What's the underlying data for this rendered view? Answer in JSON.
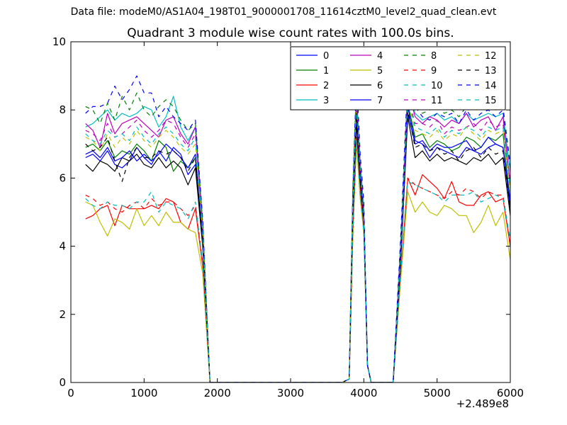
{
  "figure": {
    "supertitle": "Data file: modeM0/AS1A04_198T01_9000001708_11614cztM0_level2_quad_clean.evt"
  },
  "chart_data": {
    "type": "line",
    "title": "Quadrant 3 module wise count rates with 100.0s bins.",
    "xlabel": "",
    "ylabel": "",
    "x_offset_label": "+2.489e8",
    "xlim": [
      0,
      6000
    ],
    "ylim": [
      0,
      10
    ],
    "x_ticks": [
      0,
      1000,
      2000,
      3000,
      4000,
      5000,
      6000
    ],
    "y_ticks": [
      0,
      2,
      4,
      6,
      8,
      10
    ],
    "x_tick_labels": [
      "0",
      "1000",
      "2000",
      "3000",
      "4000",
      "5000",
      "6000"
    ],
    "y_tick_labels": [
      "0",
      "2",
      "4",
      "6",
      "8",
      "10"
    ],
    "grid": false,
    "legend_position": "top-right",
    "legend_columns": 4,
    "x": [
      200,
      300,
      400,
      500,
      600,
      700,
      800,
      900,
      1000,
      1100,
      1200,
      1300,
      1400,
      1500,
      1600,
      1700,
      1800,
      1900,
      2000,
      2100,
      2200,
      2300,
      2400,
      2500,
      2600,
      2700,
      2800,
      2900,
      3000,
      3100,
      3200,
      3300,
      3400,
      3500,
      3600,
      3700,
      3800,
      3850,
      3900,
      3950,
      4000,
      4050,
      4100,
      4200,
      4300,
      4400,
      4500,
      4600,
      4700,
      4800,
      4900,
      5000,
      5100,
      5200,
      5300,
      5400,
      5500,
      5600,
      5700,
      5800,
      5900,
      6000
    ],
    "series": [
      {
        "name": "0",
        "color": "#0000ff",
        "dash": "solid",
        "values": [
          6.6,
          6.7,
          6.5,
          6.8,
          6.4,
          6.3,
          6.5,
          6.9,
          6.6,
          6.4,
          6.8,
          6.5,
          6.9,
          6.7,
          6.1,
          6.4,
          4.1,
          0,
          0,
          0,
          0,
          0,
          0,
          0,
          0,
          0,
          0,
          0,
          0,
          0,
          0,
          0,
          0,
          0,
          0,
          0,
          0.1,
          5.0,
          7.7,
          6.0,
          4.8,
          0.5,
          0,
          0,
          0,
          0,
          3.5,
          8.1,
          7.1,
          7.0,
          6.6,
          6.9,
          6.8,
          6.7,
          6.6,
          6.9,
          6.8,
          6.7,
          6.9,
          7.0,
          6.9,
          5.1
        ]
      },
      {
        "name": "1",
        "color": "#008000",
        "dash": "solid",
        "values": [
          6.9,
          7.0,
          6.8,
          7.1,
          6.6,
          6.8,
          6.7,
          7.0,
          6.8,
          6.5,
          7.1,
          6.9,
          6.2,
          6.5,
          6.3,
          6.6,
          4.2,
          0,
          0,
          0,
          0,
          0,
          0,
          0,
          0,
          0,
          0,
          0,
          0,
          0,
          0,
          0,
          0,
          0,
          0,
          0,
          0.1,
          5.1,
          8.0,
          6.1,
          4.9,
          0.5,
          0,
          0,
          0,
          0,
          3.7,
          8.2,
          7.2,
          7.3,
          6.9,
          7.1,
          7.0,
          6.8,
          6.9,
          7.2,
          7.1,
          6.9,
          7.2,
          7.1,
          7.3,
          5.3
        ]
      },
      {
        "name": "2",
        "color": "#ff0000",
        "dash": "solid",
        "values": [
          4.8,
          4.9,
          5.1,
          5.2,
          4.6,
          5.2,
          5.1,
          5.1,
          5.1,
          5.2,
          5.1,
          5.4,
          5.3,
          4.7,
          4.5,
          5.1,
          3.4,
          0,
          0,
          0,
          0,
          0,
          0,
          0,
          0,
          0,
          0,
          0,
          0,
          0,
          0,
          0,
          0,
          0,
          0,
          0,
          0.1,
          4.3,
          7.2,
          5.6,
          4.5,
          0.5,
          0,
          0,
          0,
          0,
          3.0,
          6.0,
          5.5,
          6.1,
          5.9,
          5.7,
          5.4,
          5.9,
          5.3,
          5.2,
          5.2,
          5.5,
          5.6,
          5.3,
          5.4,
          4.0
        ]
      },
      {
        "name": "3",
        "color": "#00bfbf",
        "dash": "solid",
        "values": [
          7.5,
          7.6,
          7.8,
          8.0,
          7.7,
          7.9,
          7.8,
          7.9,
          8.1,
          8.0,
          7.5,
          7.8,
          8.4,
          7.5,
          7.1,
          7.5,
          4.5,
          0,
          0,
          0,
          0,
          0,
          0,
          0,
          0,
          0,
          0,
          0,
          0,
          0,
          0,
          0,
          0,
          0,
          0,
          0,
          0.1,
          5.6,
          8.5,
          6.5,
          5.1,
          0.5,
          0,
          0,
          0,
          0,
          4.0,
          8.7,
          7.9,
          7.7,
          7.8,
          7.9,
          7.7,
          7.8,
          7.6,
          7.9,
          7.7,
          7.8,
          7.9,
          7.8,
          7.9,
          6.2
        ]
      },
      {
        "name": "4",
        "color": "#bf00bf",
        "dash": "solid",
        "values": [
          7.6,
          7.4,
          6.9,
          7.9,
          7.3,
          7.6,
          7.7,
          7.8,
          7.6,
          7.4,
          7.2,
          7.7,
          7.8,
          7.3,
          7.0,
          7.5,
          4.6,
          0,
          0,
          0,
          0,
          0,
          0,
          0,
          0,
          0,
          0,
          0,
          0,
          0,
          0,
          0,
          0,
          0,
          0,
          0,
          0.1,
          5.5,
          8.3,
          6.4,
          5.0,
          0.5,
          0,
          0,
          0,
          0,
          3.9,
          8.6,
          7.8,
          7.6,
          7.8,
          7.7,
          7.5,
          7.7,
          7.6,
          7.9,
          7.5,
          7.7,
          7.8,
          7.4,
          7.8,
          5.8
        ]
      },
      {
        "name": "5",
        "color": "#bfbf00",
        "dash": "solid",
        "values": [
          5.3,
          5.2,
          4.7,
          4.3,
          4.8,
          4.7,
          4.5,
          5.1,
          4.6,
          4.9,
          4.6,
          5.0,
          4.7,
          4.7,
          4.5,
          4.4,
          3.2,
          0,
          0,
          0,
          0,
          0,
          0,
          0,
          0,
          0,
          0,
          0,
          0,
          0,
          0,
          0,
          0,
          0,
          0,
          0,
          0.1,
          4.2,
          7.0,
          5.4,
          4.4,
          0.5,
          0,
          0,
          0,
          0,
          2.9,
          5.6,
          5.0,
          5.3,
          5.0,
          4.9,
          5.2,
          5.1,
          4.9,
          4.9,
          4.4,
          4.7,
          5.2,
          4.6,
          5.0,
          3.6
        ]
      },
      {
        "name": "6",
        "color": "#000000",
        "dash": "solid",
        "values": [
          6.4,
          6.2,
          6.5,
          6.4,
          6.2,
          6.6,
          6.5,
          6.7,
          6.4,
          6.3,
          6.6,
          6.3,
          6.5,
          6.3,
          5.8,
          6.3,
          4.0,
          0,
          0,
          0,
          0,
          0,
          0,
          0,
          0,
          0,
          0,
          0,
          0,
          0,
          0,
          0,
          0,
          0,
          0,
          0,
          0.1,
          4.9,
          7.6,
          5.9,
          4.7,
          0.5,
          0,
          0,
          0,
          0,
          3.4,
          7.8,
          6.6,
          6.8,
          6.5,
          6.7,
          6.5,
          6.6,
          6.5,
          6.4,
          6.6,
          6.5,
          6.7,
          6.4,
          6.6,
          4.9
        ]
      },
      {
        "name": "7",
        "color": "#0000ff",
        "dash": "solid",
        "values": [
          6.7,
          6.8,
          6.6,
          6.9,
          6.5,
          6.6,
          6.8,
          6.5,
          6.7,
          6.5,
          6.7,
          7.0,
          6.8,
          6.6,
          6.3,
          6.7,
          4.2,
          0,
          0,
          0,
          0,
          0,
          0,
          0,
          0,
          0,
          0,
          0,
          0,
          0,
          0,
          0,
          0,
          0,
          0,
          0,
          0.1,
          5.1,
          8.0,
          6.1,
          4.8,
          0.5,
          0,
          0,
          0,
          0,
          3.6,
          7.9,
          7.0,
          7.1,
          6.8,
          7.0,
          6.9,
          6.9,
          7.0,
          7.1,
          6.8,
          6.9,
          7.2,
          7.0,
          6.9,
          5.3
        ]
      },
      {
        "name": "8",
        "color": "#008000",
        "dash": "dashed",
        "values": [
          8.1,
          8.0,
          7.6,
          8.2,
          7.7,
          8.4,
          8.0,
          8.5,
          8.0,
          7.8,
          8.1,
          8.3,
          8.1,
          7.7,
          7.4,
          7.6,
          4.7,
          0,
          0,
          0,
          0,
          0,
          0,
          0,
          0,
          0,
          0,
          0,
          0,
          0,
          0,
          0,
          0,
          0,
          0,
          0,
          0.1,
          5.7,
          8.8,
          6.6,
          5.2,
          0.5,
          0,
          0,
          0,
          0,
          4.1,
          8.9,
          8.1,
          7.9,
          8.0,
          8.1,
          7.9,
          8.0,
          7.8,
          8.1,
          8.0,
          8.2,
          8.3,
          8.0,
          8.1,
          6.4
        ]
      },
      {
        "name": "9",
        "color": "#ff0000",
        "dash": "dashed",
        "values": [
          5.5,
          5.4,
          5.2,
          5.3,
          5.1,
          5.0,
          5.2,
          5.3,
          5.1,
          5.4,
          5.2,
          5.3,
          5.3,
          5.1,
          4.9,
          5.2,
          3.5,
          0,
          0,
          0,
          0,
          0,
          0,
          0,
          0,
          0,
          0,
          0,
          0,
          0,
          0,
          0,
          0,
          0,
          0,
          0,
          0.1,
          4.4,
          7.2,
          5.6,
          4.5,
          0.5,
          0,
          0,
          0,
          0,
          3.1,
          6.0,
          5.8,
          5.7,
          5.6,
          5.5,
          5.4,
          5.6,
          5.5,
          5.7,
          5.6,
          5.4,
          5.6,
          5.5,
          5.5,
          4.1
        ]
      },
      {
        "name": "10",
        "color": "#00bfbf",
        "dash": "dashed",
        "values": [
          5.4,
          5.2,
          5.1,
          5.3,
          5.2,
          5.2,
          5.1,
          5.3,
          5.3,
          5.6,
          5.0,
          5.3,
          5.2,
          5.1,
          4.8,
          5.3,
          3.5,
          0,
          0,
          0,
          0,
          0,
          0,
          0,
          0,
          0,
          0,
          0,
          0,
          0,
          0,
          0,
          0,
          0,
          0,
          0,
          0.1,
          4.4,
          7.1,
          5.5,
          4.4,
          0.5,
          0,
          0,
          0,
          0,
          3.1,
          5.9,
          5.8,
          5.7,
          5.6,
          5.5,
          5.3,
          5.5,
          5.5,
          5.5,
          5.6,
          5.3,
          5.4,
          5.5,
          5.4,
          4.2
        ]
      },
      {
        "name": "11",
        "color": "#bf00bf",
        "dash": "dashed",
        "values": [
          7.4,
          7.3,
          7.1,
          7.6,
          7.2,
          7.3,
          7.5,
          7.7,
          7.4,
          7.2,
          7.4,
          7.7,
          7.6,
          7.2,
          6.9,
          7.3,
          4.5,
          0,
          0,
          0,
          0,
          0,
          0,
          0,
          0,
          0,
          0,
          0,
          0,
          0,
          0,
          0,
          0,
          0,
          0,
          0,
          0.1,
          5.4,
          8.4,
          6.4,
          5.0,
          0.5,
          0,
          0,
          0,
          0,
          3.9,
          8.4,
          7.6,
          7.6,
          7.5,
          7.7,
          7.3,
          7.5,
          7.4,
          7.5,
          7.6,
          7.4,
          7.7,
          7.5,
          7.6,
          5.9
        ]
      },
      {
        "name": "12",
        "color": "#bfbf00",
        "dash": "dashed",
        "values": [
          7.2,
          7.1,
          6.8,
          7.3,
          6.9,
          7.2,
          7.0,
          7.4,
          7.1,
          6.9,
          7.2,
          7.4,
          7.2,
          6.9,
          6.7,
          7.0,
          4.4,
          0,
          0,
          0,
          0,
          0,
          0,
          0,
          0,
          0,
          0,
          0,
          0,
          0,
          0,
          0,
          0,
          0,
          0,
          0,
          0.1,
          5.3,
          8.2,
          6.3,
          4.9,
          0.5,
          0,
          0,
          0,
          0,
          3.8,
          8.3,
          7.4,
          7.3,
          7.2,
          7.4,
          7.1,
          7.3,
          7.2,
          7.5,
          7.3,
          7.1,
          7.4,
          7.3,
          7.4,
          5.6
        ]
      },
      {
        "name": "13",
        "color": "#000000",
        "dash": "dashed",
        "values": [
          7.0,
          6.8,
          6.9,
          7.2,
          6.5,
          5.9,
          6.6,
          6.9,
          6.6,
          6.6,
          6.8,
          6.7,
          6.8,
          6.6,
          6.2,
          6.6,
          4.2,
          0,
          0,
          0,
          0,
          0,
          0,
          0,
          0,
          0,
          0,
          0,
          0,
          0,
          0,
          0,
          0,
          0,
          0,
          0,
          0.1,
          5.0,
          7.9,
          6.0,
          4.8,
          0.5,
          0,
          0,
          0,
          0,
          3.6,
          8.0,
          6.9,
          7.0,
          6.8,
          6.9,
          6.7,
          6.8,
          6.5,
          6.8,
          6.9,
          6.6,
          6.9,
          6.7,
          6.8,
          5.1
        ]
      },
      {
        "name": "14",
        "color": "#0000ff",
        "dash": "dashed",
        "values": [
          7.9,
          8.1,
          8.1,
          8.2,
          8.7,
          8.3,
          8.6,
          9.0,
          8.5,
          8.5,
          7.8,
          8.1,
          7.8,
          7.6,
          7.4,
          7.7,
          4.8,
          0,
          0,
          0,
          0,
          0,
          0,
          0,
          0,
          0,
          0,
          0,
          0,
          0,
          0,
          0,
          0,
          0,
          0,
          0,
          0.1,
          5.6,
          9.0,
          6.7,
          5.3,
          0.5,
          0,
          0,
          0,
          0,
          4.1,
          8.9,
          8.1,
          7.8,
          7.7,
          7.9,
          7.8,
          7.9,
          7.6,
          8.0,
          7.7,
          7.9,
          8.0,
          7.8,
          8.0,
          6.3
        ]
      },
      {
        "name": "15",
        "color": "#00bfbf",
        "dash": "dashed",
        "values": [
          7.3,
          7.1,
          7.0,
          7.4,
          7.2,
          7.3,
          7.1,
          7.5,
          7.2,
          7.0,
          7.3,
          7.5,
          7.3,
          7.0,
          6.8,
          7.2,
          4.5,
          0,
          0,
          0,
          0,
          0,
          0,
          0,
          0,
          0,
          0,
          0,
          0,
          0,
          0,
          0,
          0,
          0,
          0,
          0,
          0.1,
          5.3,
          8.3,
          6.3,
          5.0,
          0.5,
          0,
          0,
          0,
          0,
          3.8,
          8.4,
          7.5,
          7.4,
          7.3,
          7.5,
          7.2,
          7.4,
          7.3,
          7.5,
          7.4,
          7.2,
          7.5,
          7.4,
          7.5,
          5.7
        ]
      }
    ]
  }
}
